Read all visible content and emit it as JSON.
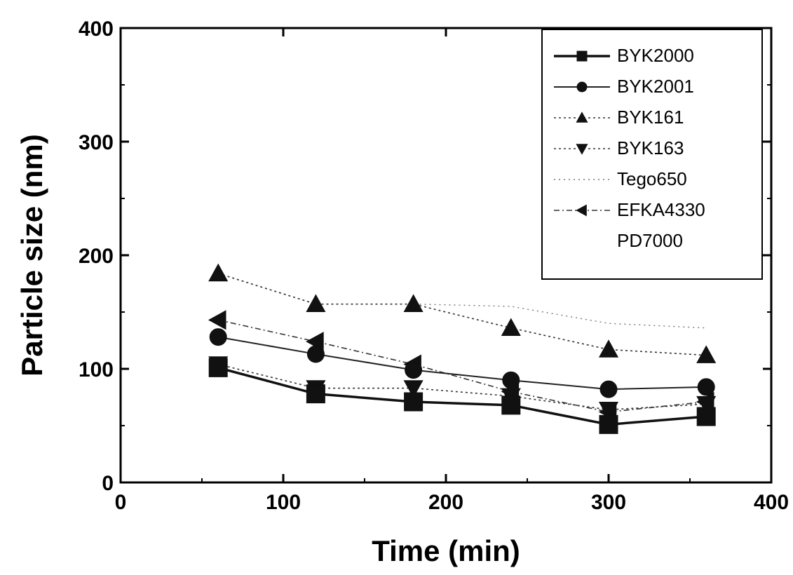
{
  "chart_data": {
    "type": "line",
    "title": "",
    "xlabel": "Time (min)",
    "ylabel": "Particle size (nm)",
    "xlim": [
      0,
      400
    ],
    "ylim": [
      0,
      400
    ],
    "xticks": [
      0,
      100,
      200,
      300,
      400
    ],
    "yticks": [
      0,
      100,
      200,
      300,
      400
    ],
    "grid": false,
    "legend_position": "top-right",
    "x": [
      60,
      120,
      180,
      240,
      300,
      360
    ],
    "series": [
      {
        "name": "BYK2000",
        "marker": "square",
        "line": "solid-bold",
        "values": [
          101,
          78,
          71,
          68,
          51,
          58
        ]
      },
      {
        "name": "BYK2001",
        "marker": "circle",
        "line": "solid",
        "values": [
          128,
          113,
          99,
          90,
          82,
          84
        ]
      },
      {
        "name": "BYK161",
        "marker": "triangle-up",
        "line": "dotted",
        "values": [
          184,
          157,
          157,
          136,
          117,
          112
        ]
      },
      {
        "name": "BYK163",
        "marker": "triangle-down",
        "line": "dotted",
        "values": [
          104,
          83,
          83,
          76,
          64,
          69
        ]
      },
      {
        "name": "Tego650",
        "marker": "none",
        "line": "faint-dotted",
        "values": [
          184,
          157,
          157,
          155,
          140,
          136
        ]
      },
      {
        "name": "EFKA4330",
        "marker": "triangle-left",
        "line": "dash-dot",
        "values": [
          143,
          124,
          104,
          80,
          62,
          71
        ]
      },
      {
        "name": "PD7000",
        "marker": "none",
        "line": "faint",
        "values": [
          101,
          78,
          71,
          68,
          51,
          58
        ]
      }
    ]
  }
}
